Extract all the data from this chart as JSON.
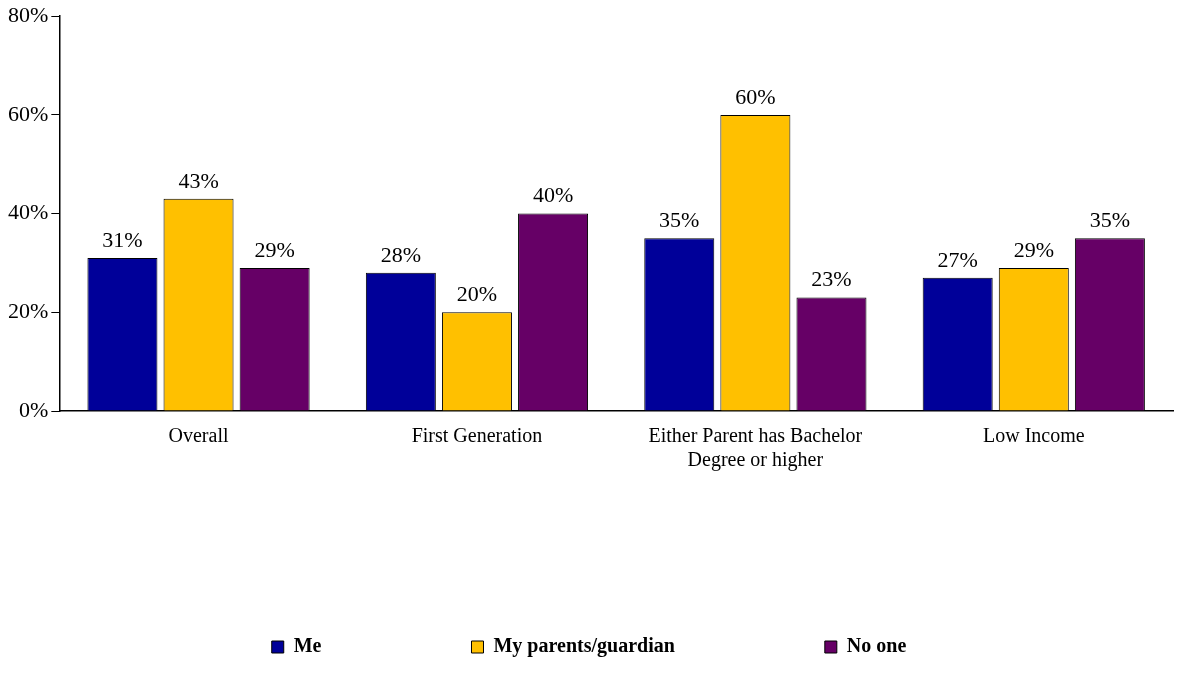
{
  "chart_data": {
    "type": "bar",
    "categories": [
      "Overall",
      "First Generation",
      "Either Parent has Bachelor Degree or higher",
      "Low Income"
    ],
    "series": [
      {
        "name": "Me",
        "color": "#000099",
        "values": [
          31,
          28,
          35,
          27
        ],
        "value_labels": [
          "31%",
          "28%",
          "35%",
          "27%"
        ]
      },
      {
        "name": "My parents/guardian",
        "color": "#ffc000",
        "values": [
          43,
          20,
          60,
          29
        ],
        "value_labels": [
          "43%",
          "20%",
          "60%",
          "29%"
        ]
      },
      {
        "name": "No one",
        "color": "#660066",
        "values": [
          29,
          40,
          23,
          35
        ],
        "value_labels": [
          "29%",
          "40%",
          "23%",
          "35%"
        ]
      }
    ],
    "ylim": [
      0,
      80
    ],
    "yticks": [
      {
        "value": 0,
        "label": "0%"
      },
      {
        "value": 20,
        "label": "20%"
      },
      {
        "value": 40,
        "label": "40%"
      },
      {
        "value": 60,
        "label": "60%"
      },
      {
        "value": 80,
        "label": "80%"
      }
    ],
    "grid": false,
    "legend": "bottom"
  }
}
